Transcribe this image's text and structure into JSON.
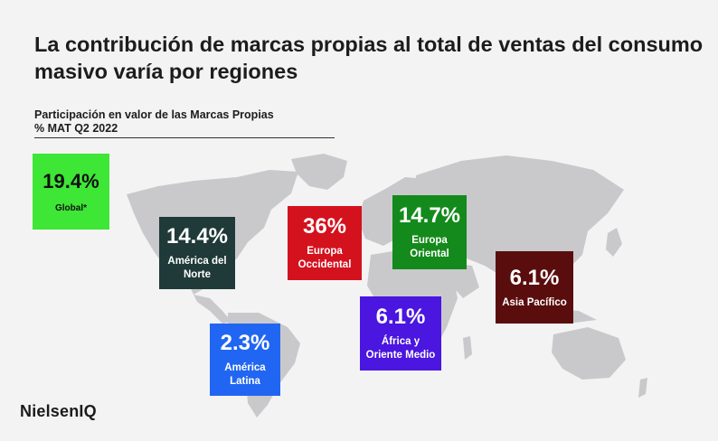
{
  "title": "La contribución de marcas propias al total de ventas del consumo masivo varía por regiones",
  "subtitle_line1": "Participación  en valor de las Marcas Propias",
  "subtitle_line2": "% MAT Q2 2022",
  "brand": "NielsenIQ",
  "colors": {
    "background": "#f3f3f4",
    "map": "#c9c9cc",
    "global": "#3ee636",
    "north_america": "#1f3a38",
    "western_europe": "#d4121e",
    "eastern_europe": "#138a1b",
    "asia_pacific": "#5a0d0d",
    "africa_me": "#4a16e0",
    "latin_america": "#2166f2"
  },
  "chart_data": {
    "type": "table",
    "categories": [
      "Global*",
      "América del Norte",
      "Europa Occidental",
      "Europa Oriental",
      "Asia Pacífico",
      "África y Oriente Medio",
      "América Latina"
    ],
    "values": [
      19.4,
      14.4,
      36,
      14.7,
      6.1,
      6.1,
      2.3
    ],
    "unit": "%",
    "tiles": [
      {
        "key": "global",
        "value": "19.4%",
        "label": "Global*"
      },
      {
        "key": "north_america",
        "value": "14.4%",
        "label": "América del Norte"
      },
      {
        "key": "western_europe",
        "value": "36%",
        "label": "Europa Occidental"
      },
      {
        "key": "eastern_europe",
        "value": "14.7%",
        "label": "Europa Oriental"
      },
      {
        "key": "asia_pacific",
        "value": "6.1%",
        "label": "Asia Pacífico"
      },
      {
        "key": "africa_me",
        "value": "6.1%",
        "label": "África y Oriente Medio"
      },
      {
        "key": "latin_america",
        "value": "2.3%",
        "label": "América Latina"
      }
    ]
  }
}
